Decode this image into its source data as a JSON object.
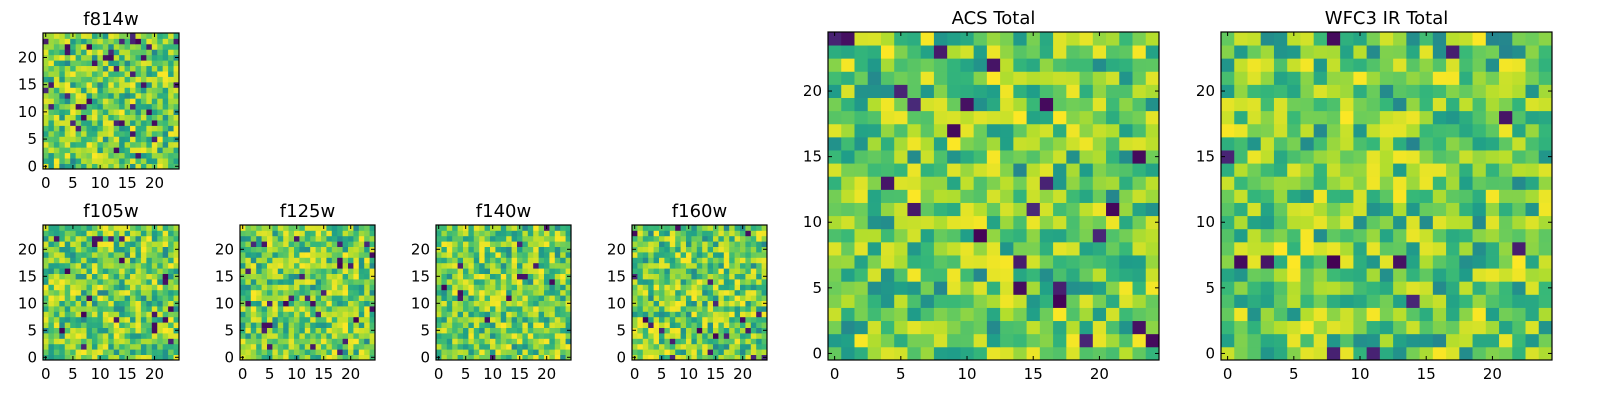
{
  "chart_data": [
    {
      "type": "heatmap",
      "title": "f814w",
      "rows": 25,
      "cols": 25,
      "colormap": "viridis",
      "seed": 814,
      "dark_fraction": 0.05,
      "xticks": [
        "0",
        "5",
        "10",
        "15",
        "20"
      ],
      "yticks": [
        "0",
        "5",
        "10",
        "15",
        "20"
      ],
      "origin": "lower"
    },
    {
      "type": "heatmap",
      "title": "f105w",
      "rows": 25,
      "cols": 25,
      "colormap": "viridis",
      "seed": 105,
      "dark_fraction": 0.025,
      "xticks": [
        "0",
        "5",
        "10",
        "15",
        "20"
      ],
      "yticks": [
        "0",
        "5",
        "10",
        "15",
        "20"
      ],
      "origin": "lower"
    },
    {
      "type": "heatmap",
      "title": "f125w",
      "rows": 25,
      "cols": 25,
      "colormap": "viridis",
      "seed": 125,
      "dark_fraction": 0.035,
      "xticks": [
        "0",
        "5",
        "10",
        "15",
        "20"
      ],
      "yticks": [
        "0",
        "5",
        "10",
        "15",
        "20"
      ],
      "origin": "lower"
    },
    {
      "type": "heatmap",
      "title": "f140w",
      "rows": 25,
      "cols": 25,
      "colormap": "viridis",
      "seed": 140,
      "dark_fraction": 0.02,
      "xticks": [
        "0",
        "5",
        "10",
        "15",
        "20"
      ],
      "yticks": [
        "0",
        "5",
        "10",
        "15",
        "20"
      ],
      "origin": "lower"
    },
    {
      "type": "heatmap",
      "title": "f160w",
      "rows": 25,
      "cols": 25,
      "colormap": "viridis",
      "seed": 160,
      "dark_fraction": 0.04,
      "xticks": [
        "0",
        "5",
        "10",
        "15",
        "20"
      ],
      "yticks": [
        "0",
        "5",
        "10",
        "15",
        "20"
      ],
      "origin": "lower"
    },
    {
      "type": "heatmap",
      "title": "ACS Total",
      "rows": 25,
      "cols": 25,
      "colormap": "viridis",
      "seed": 7,
      "dark_fraction": 0.03,
      "xticks": [
        "0",
        "5",
        "10",
        "15",
        "20"
      ],
      "yticks": [
        "0",
        "5",
        "10",
        "15",
        "20"
      ],
      "origin": "lower"
    },
    {
      "type": "heatmap",
      "title": "WFC3 IR Total",
      "rows": 25,
      "cols": 25,
      "colormap": "viridis",
      "seed": 33,
      "dark_fraction": 0.03,
      "xticks": [
        "0",
        "5",
        "10",
        "15",
        "20"
      ],
      "yticks": [
        "0",
        "5",
        "10",
        "15",
        "20"
      ],
      "origin": "lower"
    }
  ]
}
